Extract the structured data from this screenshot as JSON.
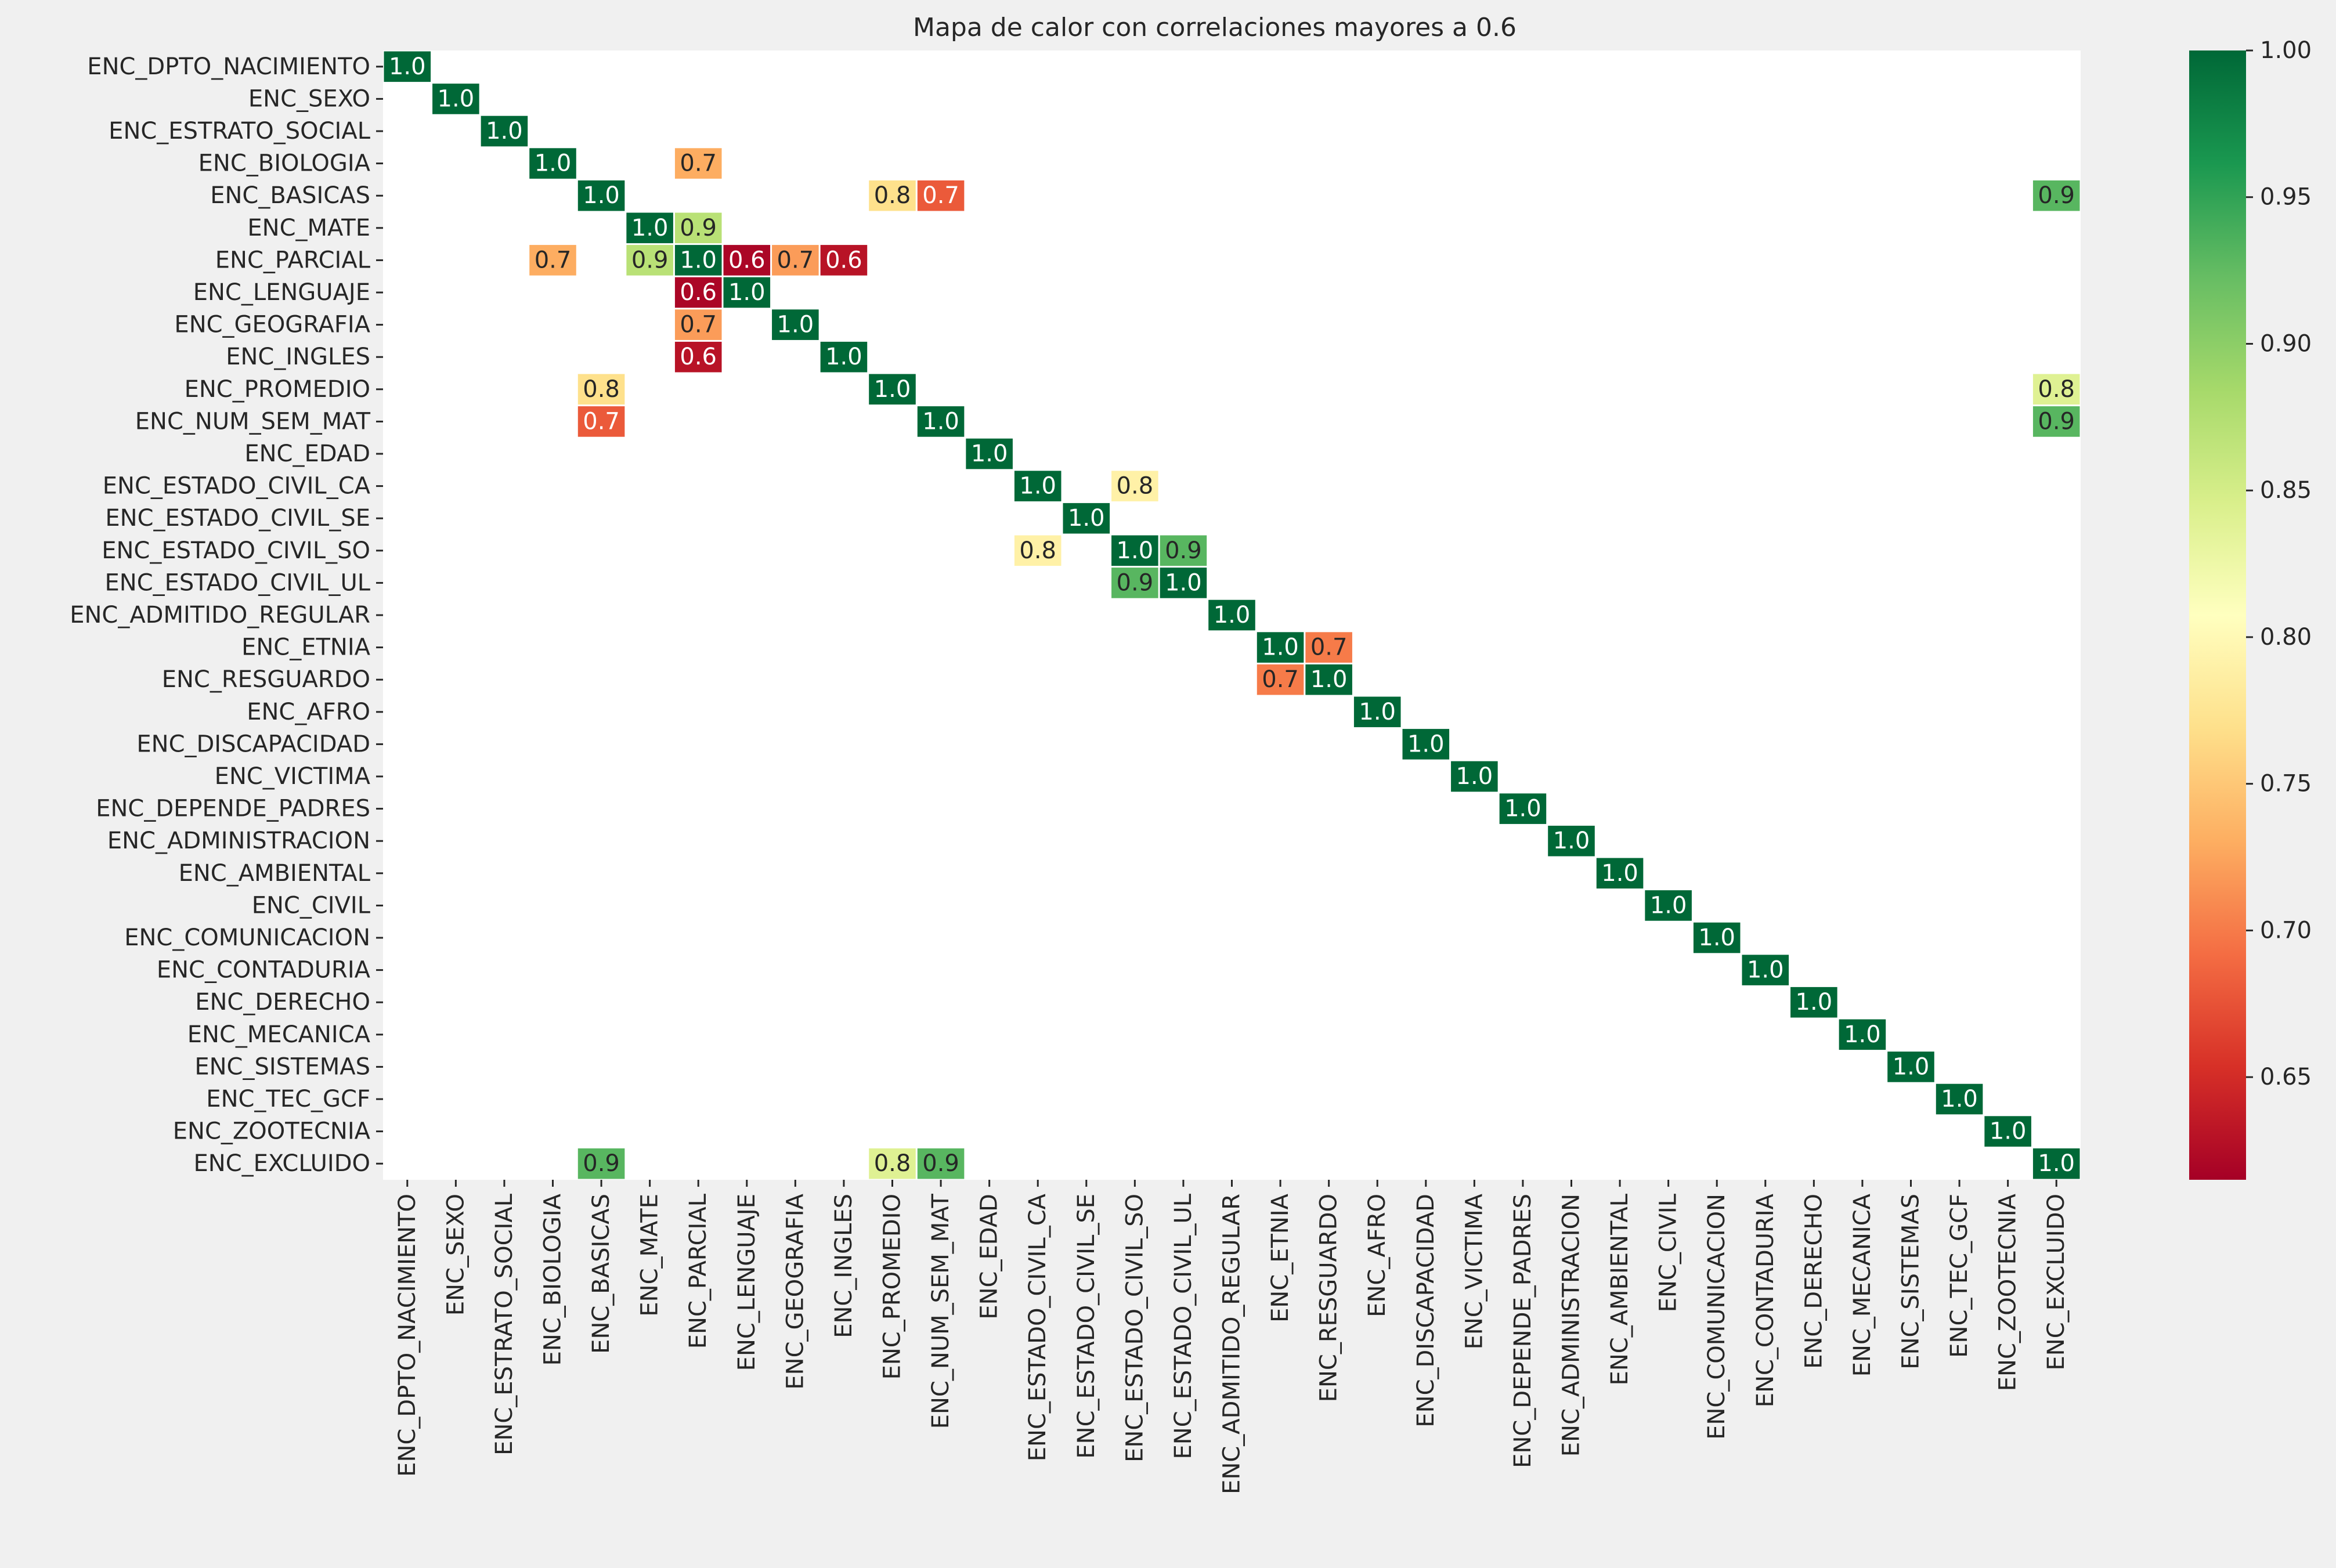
{
  "chart_data": {
    "type": "heatmap",
    "title": "Mapa de calor con correlaciones mayores a 0.6",
    "labels": [
      "ENC_DPTO_NACIMIENTO",
      "ENC_SEXO",
      "ENC_ESTRATO_SOCIAL",
      "ENC_BIOLOGIA",
      "ENC_BASICAS",
      "ENC_MATE",
      "ENC_PARCIAL",
      "ENC_LENGUAJE",
      "ENC_GEOGRAFIA",
      "ENC_INGLES",
      "ENC_PROMEDIO",
      "ENC_NUM_SEM_MAT",
      "ENC_EDAD",
      "ENC_ESTADO_CIVIL_CA",
      "ENC_ESTADO_CIVIL_SE",
      "ENC_ESTADO_CIVIL_SO",
      "ENC_ESTADO_CIVIL_UL",
      "ENC_ADMITIDO_REGULAR",
      "ENC_ETNIA",
      "ENC_RESGUARDO",
      "ENC_AFRO",
      "ENC_DISCAPACIDAD",
      "ENC_VICTIMA",
      "ENC_DEPENDE_PADRES",
      "ENC_ADMINISTRACION",
      "ENC_AMBIENTAL",
      "ENC_CIVIL",
      "ENC_COMUNICACION",
      "ENC_CONTADURIA",
      "ENC_DERECHO",
      "ENC_MECANICA",
      "ENC_SISTEMAS",
      "ENC_TEC_GCF",
      "ENC_ZOOTECNIA",
      "ENC_EXCLUIDO"
    ],
    "cells": [
      {
        "row": "ENC_BIOLOGIA",
        "col": "ENC_PARCIAL",
        "value": 0.73,
        "label": "0.7"
      },
      {
        "row": "ENC_BASICAS",
        "col": "ENC_PROMEDIO",
        "value": 0.77,
        "label": "0.8"
      },
      {
        "row": "ENC_BASICAS",
        "col": "ENC_NUM_SEM_MAT",
        "value": 0.68,
        "label": "0.7"
      },
      {
        "row": "ENC_BASICAS",
        "col": "ENC_EXCLUIDO",
        "value": 0.93,
        "label": "0.9"
      },
      {
        "row": "ENC_MATE",
        "col": "ENC_PARCIAL",
        "value": 0.87,
        "label": "0.9"
      },
      {
        "row": "ENC_PARCIAL",
        "col": "ENC_BIOLOGIA",
        "value": 0.73,
        "label": "0.7"
      },
      {
        "row": "ENC_PARCIAL",
        "col": "ENC_MATE",
        "value": 0.87,
        "label": "0.9"
      },
      {
        "row": "ENC_PARCIAL",
        "col": "ENC_LENGUAJE",
        "value": 0.62,
        "label": "0.6"
      },
      {
        "row": "ENC_PARCIAL",
        "col": "ENC_GEOGRAFIA",
        "value": 0.72,
        "label": "0.7"
      },
      {
        "row": "ENC_PARCIAL",
        "col": "ENC_INGLES",
        "value": 0.63,
        "label": "0.6"
      },
      {
        "row": "ENC_LENGUAJE",
        "col": "ENC_PARCIAL",
        "value": 0.62,
        "label": "0.6"
      },
      {
        "row": "ENC_GEOGRAFIA",
        "col": "ENC_PARCIAL",
        "value": 0.72,
        "label": "0.7"
      },
      {
        "row": "ENC_INGLES",
        "col": "ENC_PARCIAL",
        "value": 0.63,
        "label": "0.6"
      },
      {
        "row": "ENC_PROMEDIO",
        "col": "ENC_BASICAS",
        "value": 0.77,
        "label": "0.8"
      },
      {
        "row": "ENC_PROMEDIO",
        "col": "ENC_EXCLUIDO",
        "value": 0.84,
        "label": "0.8"
      },
      {
        "row": "ENC_NUM_SEM_MAT",
        "col": "ENC_BASICAS",
        "value": 0.68,
        "label": "0.7"
      },
      {
        "row": "ENC_NUM_SEM_MAT",
        "col": "ENC_EXCLUIDO",
        "value": 0.93,
        "label": "0.9"
      },
      {
        "row": "ENC_ESTADO_CIVIL_CA",
        "col": "ENC_ESTADO_CIVIL_SO",
        "value": 0.79,
        "label": "0.8"
      },
      {
        "row": "ENC_ESTADO_CIVIL_SO",
        "col": "ENC_ESTADO_CIVIL_CA",
        "value": 0.79,
        "label": "0.8"
      },
      {
        "row": "ENC_ESTADO_CIVIL_SO",
        "col": "ENC_ESTADO_CIVIL_UL",
        "value": 0.93,
        "label": "0.9"
      },
      {
        "row": "ENC_ESTADO_CIVIL_UL",
        "col": "ENC_ESTADO_CIVIL_SO",
        "value": 0.93,
        "label": "0.9"
      },
      {
        "row": "ENC_ETNIA",
        "col": "ENC_RESGUARDO",
        "value": 0.7,
        "label": "0.7"
      },
      {
        "row": "ENC_RESGUARDO",
        "col": "ENC_ETNIA",
        "value": 0.7,
        "label": "0.7"
      },
      {
        "row": "ENC_EXCLUIDO",
        "col": "ENC_BASICAS",
        "value": 0.93,
        "label": "0.9"
      },
      {
        "row": "ENC_EXCLUIDO",
        "col": "ENC_PROMEDIO",
        "value": 0.84,
        "label": "0.8"
      },
      {
        "row": "ENC_EXCLUIDO",
        "col": "ENC_NUM_SEM_MAT",
        "value": 0.93,
        "label": "0.9"
      }
    ],
    "diagonal_value": 1.0,
    "diagonal_label": "1.0",
    "colormap": "RdYlGn",
    "vmin": 0.615,
    "vmax": 1.0,
    "colorbar_ticks": [
      "0.65",
      "0.70",
      "0.75",
      "0.80",
      "0.85",
      "0.90",
      "0.95",
      "1.00"
    ],
    "colorbar_tick_values": [
      0.65,
      0.7,
      0.75,
      0.8,
      0.85,
      0.9,
      0.95,
      1.0
    ],
    "legend_placement": "right",
    "grid": false
  },
  "colors": {
    "background": "#f0f0f0",
    "plot_background": "#ffffff",
    "text": "#262626"
  }
}
